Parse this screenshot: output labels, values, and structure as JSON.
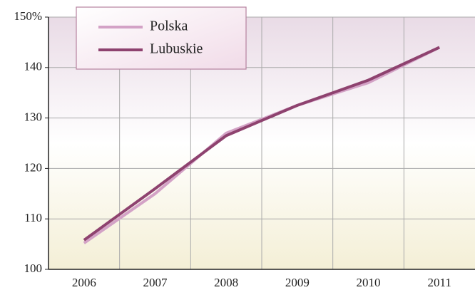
{
  "chart_data": {
    "type": "line",
    "categories": [
      "2006",
      "2007",
      "2008",
      "2009",
      "2010",
      "2011"
    ],
    "series": [
      {
        "name": "Polska",
        "color": "#d3a2c6",
        "values": [
          105.2,
          115,
          127,
          132.5,
          137,
          144
        ]
      },
      {
        "name": "Lubuskie",
        "color": "#8e426f",
        "values": [
          105.8,
          116,
          126.5,
          132.5,
          137.5,
          144
        ]
      }
    ],
    "ylim": [
      100,
      150
    ],
    "yticks": [
      100,
      110,
      120,
      130,
      140,
      {
        "value": 150,
        "label": "150%"
      }
    ],
    "grid": true,
    "legend": "top-left"
  }
}
